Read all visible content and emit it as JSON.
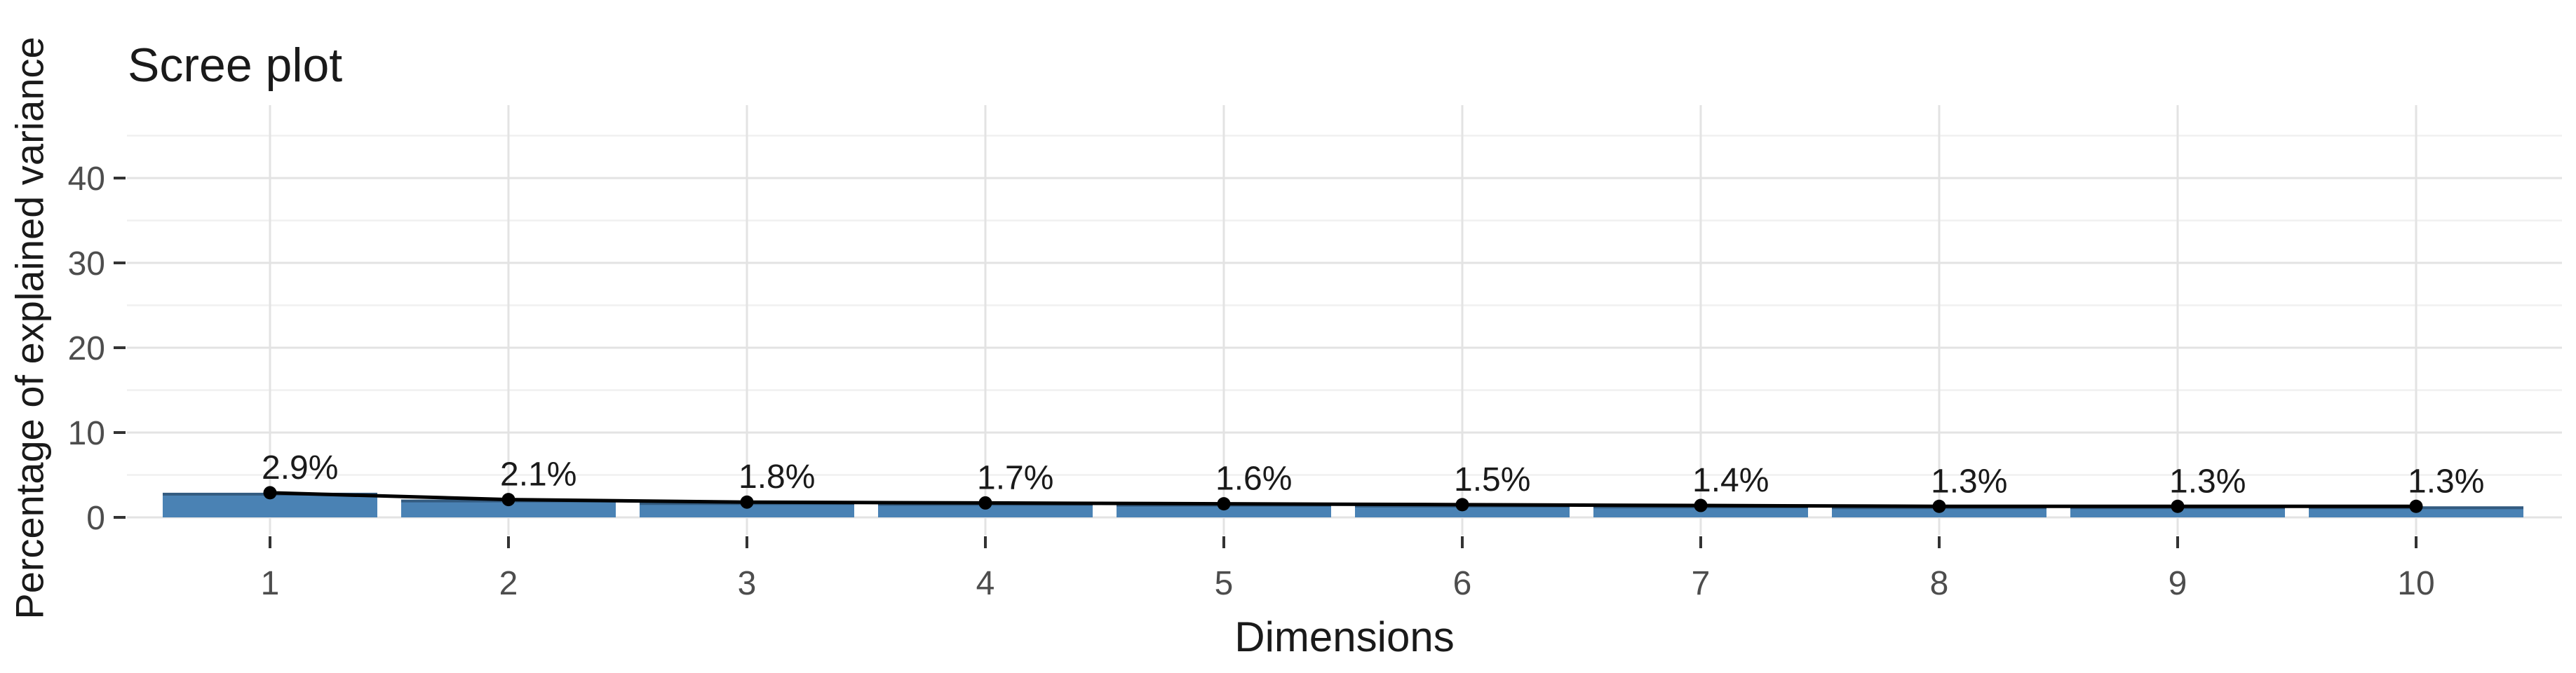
{
  "chart_data": {
    "type": "bar",
    "overlay": "line+point",
    "title": "Scree plot",
    "xlabel": "Dimensions",
    "ylabel": "Percentage of explained variance",
    "categories": [
      "1",
      "2",
      "3",
      "4",
      "5",
      "6",
      "7",
      "8",
      "9",
      "10"
    ],
    "values": [
      2.9,
      2.1,
      1.8,
      1.7,
      1.6,
      1.5,
      1.4,
      1.3,
      1.3,
      1.3
    ],
    "value_labels": [
      "2.9%",
      "2.1%",
      "1.8%",
      "1.7%",
      "1.6%",
      "1.5%",
      "1.4%",
      "1.3%",
      "1.3%",
      "1.3%"
    ],
    "y_ticks": [
      0,
      10,
      20,
      30,
      40
    ],
    "y_minor_ticks": [
      5,
      15,
      25,
      35,
      45
    ],
    "ylim": [
      0,
      48.5
    ],
    "grid": true,
    "legend": "none",
    "colors": {
      "bar_fill": "#4A82B4",
      "bar_top_edge": "rgba(25,45,65,0.45)",
      "line": "#000000",
      "point": "#000000",
      "grid_major": "#e3e3e3",
      "grid_minor": "#f0f0f0",
      "tick_mark": "#333333",
      "tick_text": "#4d4d4d",
      "text": "#1a1a1a",
      "background": "#ffffff"
    }
  }
}
